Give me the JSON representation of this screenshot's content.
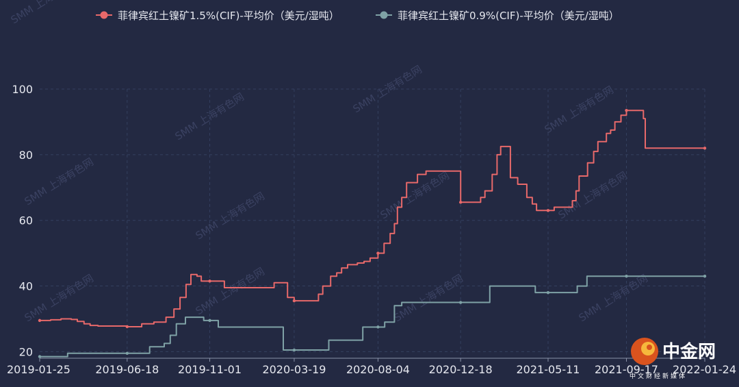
{
  "colors": {
    "background": "#232942",
    "series_1": "#e8696a",
    "series_2": "#7fa2a6",
    "grid": "#34405f",
    "axis": "#8a92a8",
    "text": "#e6e8ef"
  },
  "watermark": "SMM 上海有色网",
  "logo": {
    "text": "中金网",
    "subtitle": "中文财经新媒体"
  },
  "chart_data": {
    "type": "line",
    "title": "",
    "xlabel": "",
    "ylabel": "",
    "ylim": [
      18,
      100
    ],
    "yticks": [
      20,
      40,
      60,
      80,
      100
    ],
    "x_ticks": [
      "2019-01-25",
      "2019-06-18",
      "2019-11-01",
      "2020-03-19",
      "2020-08-04",
      "2020-12-18",
      "2021-05-11",
      "2021-09-17",
      "2022-01-24"
    ],
    "grid": true,
    "legend_position": "top-center",
    "step": true,
    "series": [
      {
        "name": "菲律宾红土镍矿1.5%(CIF)-平均价（美元/湿吨）",
        "color": "#e8696a",
        "points": [
          [
            "2019-01-25",
            29.5
          ],
          [
            "2019-02-12",
            29.7
          ],
          [
            "2019-03-01",
            30
          ],
          [
            "2019-03-18",
            29.8
          ],
          [
            "2019-03-28",
            29.2
          ],
          [
            "2019-04-08",
            28.5
          ],
          [
            "2019-04-18",
            28
          ],
          [
            "2019-05-01",
            27.8
          ],
          [
            "2019-06-18",
            27.6
          ],
          [
            "2019-07-12",
            28.5
          ],
          [
            "2019-08-01",
            29
          ],
          [
            "2019-08-21",
            30.5
          ],
          [
            "2019-09-03",
            33
          ],
          [
            "2019-09-13",
            36.5
          ],
          [
            "2019-09-23",
            40.5
          ],
          [
            "2019-10-01",
            43.5
          ],
          [
            "2019-10-11",
            43
          ],
          [
            "2019-10-18",
            41.5
          ],
          [
            "2019-11-01",
            41.5
          ],
          [
            "2019-11-25",
            39.5
          ],
          [
            "2020-02-15",
            41
          ],
          [
            "2020-03-08",
            36.5
          ],
          [
            "2020-03-19",
            35.5
          ],
          [
            "2020-04-28",
            37.5
          ],
          [
            "2020-05-05",
            40
          ],
          [
            "2020-05-18",
            43
          ],
          [
            "2020-05-28",
            44
          ],
          [
            "2020-06-05",
            45.5
          ],
          [
            "2020-06-15",
            46.5
          ],
          [
            "2020-07-01",
            47
          ],
          [
            "2020-07-12",
            47.5
          ],
          [
            "2020-07-22",
            48.5
          ],
          [
            "2020-08-04",
            50
          ],
          [
            "2020-08-14",
            53
          ],
          [
            "2020-08-24",
            56
          ],
          [
            "2020-08-31",
            59
          ],
          [
            "2020-09-05",
            64
          ],
          [
            "2020-09-12",
            67
          ],
          [
            "2020-09-20",
            71.5
          ],
          [
            "2020-10-08",
            74
          ],
          [
            "2020-10-22",
            75
          ],
          [
            "2020-12-18",
            65.5
          ],
          [
            "2021-01-20",
            67
          ],
          [
            "2021-01-27",
            69
          ],
          [
            "2021-02-08",
            74
          ],
          [
            "2021-02-16",
            80
          ],
          [
            "2021-02-22",
            82.5
          ],
          [
            "2021-03-10",
            73
          ],
          [
            "2021-03-22",
            71
          ],
          [
            "2021-04-06",
            67
          ],
          [
            "2021-04-15",
            65
          ],
          [
            "2021-04-22",
            63
          ],
          [
            "2021-05-11",
            63
          ],
          [
            "2021-05-21",
            64
          ],
          [
            "2021-06-20",
            66
          ],
          [
            "2021-06-26",
            69
          ],
          [
            "2021-07-01",
            73.5
          ],
          [
            "2021-07-15",
            77.5
          ],
          [
            "2021-07-25",
            81
          ],
          [
            "2021-08-01",
            84
          ],
          [
            "2021-08-15",
            86.5
          ],
          [
            "2021-08-22",
            87.5
          ],
          [
            "2021-08-29",
            90
          ],
          [
            "2021-09-08",
            92
          ],
          [
            "2021-09-17",
            93.5
          ],
          [
            "2021-10-15",
            91
          ],
          [
            "2021-10-18",
            82
          ],
          [
            "2022-01-24",
            82
          ]
        ]
      },
      {
        "name": "菲律宾红土镍矿0.9%(CIF)-平均价（美元/湿吨）",
        "color": "#7fa2a6",
        "points": [
          [
            "2019-01-25",
            18.5
          ],
          [
            "2019-03-12",
            19.5
          ],
          [
            "2019-06-18",
            19.5
          ],
          [
            "2019-07-25",
            21.5
          ],
          [
            "2019-08-18",
            22.5
          ],
          [
            "2019-08-28",
            25
          ],
          [
            "2019-09-07",
            28.5
          ],
          [
            "2019-09-22",
            30.5
          ],
          [
            "2019-10-22",
            29.5
          ],
          [
            "2019-11-01",
            29.5
          ],
          [
            "2019-11-15",
            27.5
          ],
          [
            "2020-03-01",
            20.5
          ],
          [
            "2020-03-19",
            20.5
          ],
          [
            "2020-05-15",
            23.5
          ],
          [
            "2020-07-10",
            27.5
          ],
          [
            "2020-08-04",
            27.5
          ],
          [
            "2020-08-15",
            29
          ],
          [
            "2020-08-31",
            34
          ],
          [
            "2020-09-12",
            35
          ],
          [
            "2020-12-18",
            35
          ],
          [
            "2021-02-04",
            40
          ],
          [
            "2021-04-20",
            38
          ],
          [
            "2021-05-11",
            38
          ],
          [
            "2021-06-28",
            40
          ],
          [
            "2021-07-14",
            43
          ],
          [
            "2021-09-17",
            43
          ],
          [
            "2022-01-24",
            43
          ]
        ]
      }
    ]
  }
}
